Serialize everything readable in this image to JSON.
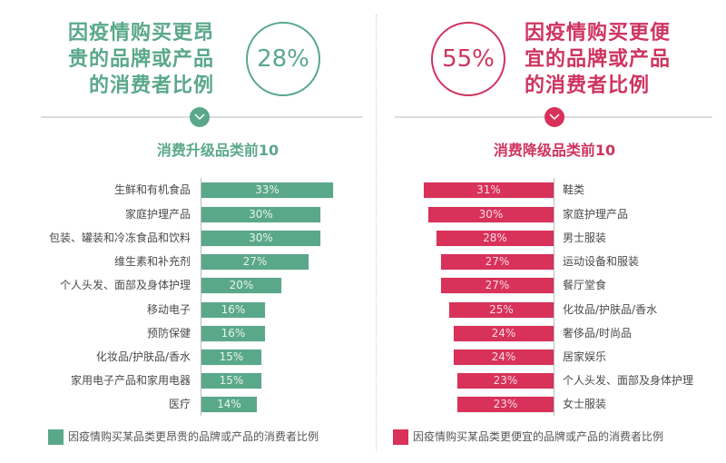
{
  "left_panel": {
    "headline_lines": [
      "因疫情购买更昂",
      "贵的品牌或产品",
      "的消费者比例"
    ],
    "percent": "28%",
    "subtitle": "消费升级品类前10",
    "color": "#5aa88a",
    "legend": "因疫情购买某品类更昂贵的品牌或产品的消费者比例",
    "icon": "chevron-down-icon"
  },
  "right_panel": {
    "headline_lines": [
      "因疫情购买更便",
      "宜的品牌或产品",
      "的消费者比例"
    ],
    "percent": "55%",
    "subtitle": "消费降级品类前10",
    "color": "#d8325a",
    "legend": "因疫情购买某品类更便宜的品牌或产品的消费者比例",
    "icon": "chevron-down-icon"
  },
  "chart_data": [
    {
      "type": "bar",
      "orientation": "horizontal",
      "title": "消费升级品类前10",
      "headline": "因疫情购买更昂贵的品牌或产品的消费者比例 28%",
      "categories": [
        "生鲜和有机食品",
        "家庭护理产品",
        "包装、罐装和冷冻食品和饮料",
        "维生素和补充剂",
        "个人头发、面部及身体护理",
        "移动电子",
        "预防保健",
        "化妆品/护肤品/香水",
        "家用电子产品和家用电器",
        "医疗"
      ],
      "values": [
        33,
        30,
        30,
        27,
        20,
        16,
        16,
        15,
        15,
        14
      ],
      "labels": [
        "33%",
        "30%",
        "30%",
        "27%",
        "20%",
        "16%",
        "16%",
        "15%",
        "15%",
        "14%"
      ],
      "series": [
        {
          "name": "因疫情购买某品类更昂贵的品牌或产品的消费者比例",
          "color": "#5aa88a",
          "values": [
            33,
            30,
            30,
            27,
            20,
            16,
            16,
            15,
            15,
            14
          ]
        }
      ],
      "xlabel": "",
      "ylabel": "",
      "grid": false,
      "legend_position": "bottom"
    },
    {
      "type": "bar",
      "orientation": "horizontal",
      "title": "消费降级品类前10",
      "headline": "因疫情购买更便宜的品牌或产品的消费者比例 55%",
      "categories": [
        "鞋类",
        "家庭护理产品",
        "男士服装",
        "运动设备和服装",
        "餐厅堂食",
        "化妆品/护肤品/香水",
        "奢侈品/时尚品",
        "居家娱乐",
        "个人头发、面部及身体护理",
        "女士服装"
      ],
      "values": [
        31,
        30,
        28,
        27,
        27,
        25,
        24,
        24,
        23,
        23
      ],
      "labels": [
        "31%",
        "30%",
        "28%",
        "27%",
        "27%",
        "25%",
        "24%",
        "24%",
        "23%",
        "23%"
      ],
      "series": [
        {
          "name": "因疫情购买某品类更便宜的品牌或产品的消费者比例",
          "color": "#d8325a",
          "values": [
            31,
            30,
            28,
            27,
            27,
            25,
            24,
            24,
            23,
            23
          ]
        }
      ],
      "xlabel": "",
      "ylabel": "",
      "grid": false,
      "legend_position": "bottom"
    }
  ]
}
